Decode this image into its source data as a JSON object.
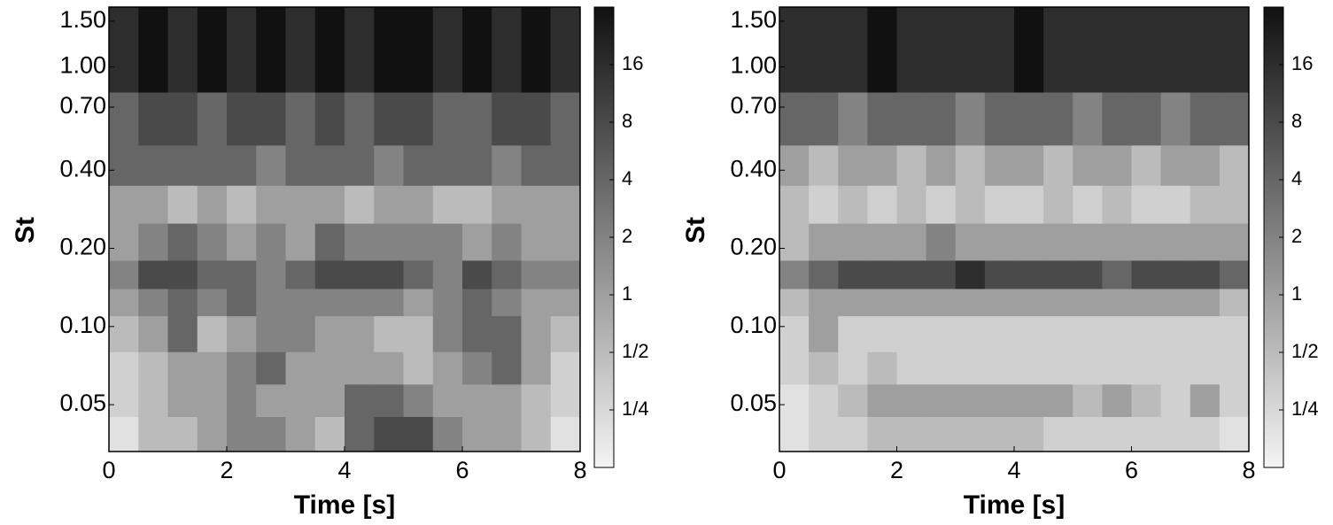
{
  "chart_data": [
    {
      "type": "heatmap",
      "xlabel": "Time [s]",
      "ylabel": "St",
      "log_y": true,
      "xlim": [
        0,
        8
      ],
      "xticks": [
        0,
        2,
        4,
        6,
        8
      ],
      "ylim": [
        0.033,
        1.7
      ],
      "yticks": [
        0.05,
        {
          "value": 0.1,
          "label": "0.10"
        },
        {
          "value": 0.2,
          "label": "0.20"
        },
        {
          "value": 0.4,
          "label": "0.40"
        },
        {
          "value": 0.7,
          "label": "0.70"
        },
        {
          "value": 1,
          "label": "1.00"
        },
        {
          "value": 1.5,
          "label": "1.50"
        }
      ],
      "x_edges": [
        0,
        0.5,
        1,
        1.5,
        2,
        2.5,
        3,
        3.5,
        4,
        4.5,
        5,
        5.5,
        6,
        6.5,
        7,
        7.5,
        8
      ],
      "y_edges": [
        0.033,
        0.045,
        0.06,
        0.08,
        0.11,
        0.14,
        0.18,
        0.25,
        0.35,
        0.5,
        0.8,
        1.7
      ],
      "z": [
        [
          0.2,
          0.5,
          0.5,
          1,
          2,
          2,
          1,
          0.5,
          4,
          8,
          8,
          2,
          1,
          1,
          0.5,
          0.2
        ],
        [
          0.3,
          0.5,
          1,
          1,
          2,
          1,
          1,
          1,
          4,
          4,
          2,
          1,
          1,
          1,
          0.5,
          0.3
        ],
        [
          0.3,
          0.5,
          1,
          1,
          2,
          4,
          1,
          1,
          1,
          1,
          0.5,
          1,
          2,
          4,
          1,
          0.3
        ],
        [
          0.5,
          1,
          4,
          0.5,
          1,
          2,
          2,
          1,
          1,
          0.5,
          0.5,
          2,
          4,
          4,
          1,
          0.5
        ],
        [
          1,
          2,
          4,
          2,
          4,
          2,
          2,
          2,
          2,
          2,
          1,
          2,
          4,
          2,
          1,
          1
        ],
        [
          2,
          8,
          8,
          4,
          4,
          2,
          4,
          8,
          8,
          8,
          4,
          2,
          8,
          4,
          2,
          2
        ],
        [
          1,
          2,
          4,
          2,
          1,
          2,
          1,
          4,
          2,
          2,
          2,
          2,
          1,
          2,
          1,
          1
        ],
        [
          1,
          1,
          0.5,
          1,
          0.5,
          1,
          1,
          1,
          0.5,
          1,
          1,
          0.5,
          0.5,
          1,
          1,
          1
        ],
        [
          4,
          4,
          4,
          4,
          4,
          2,
          4,
          4,
          4,
          2,
          4,
          4,
          4,
          2,
          4,
          4
        ],
        [
          4,
          8,
          8,
          4,
          8,
          8,
          4,
          8,
          4,
          8,
          8,
          4,
          4,
          8,
          8,
          4
        ],
        [
          16,
          32,
          16,
          32,
          16,
          32,
          16,
          32,
          16,
          32,
          32,
          16,
          32,
          16,
          32,
          16
        ]
      ],
      "colorbar": {
        "lim": [
          0.125,
          32
        ],
        "log": true,
        "colors": [
          "#f4f4f4",
          "#111111"
        ],
        "ticks": [
          {
            "value": 0.25,
            "label": "1/4"
          },
          {
            "value": 0.5,
            "label": "1/2"
          },
          1,
          2,
          4,
          8,
          16
        ]
      }
    },
    {
      "type": "heatmap",
      "xlabel": "Time [s]",
      "ylabel": "St",
      "log_y": true,
      "xlim": [
        0,
        8
      ],
      "xticks": [
        0,
        2,
        4,
        6,
        8
      ],
      "ylim": [
        0.033,
        1.7
      ],
      "yticks": [
        0.05,
        {
          "value": 0.1,
          "label": "0.10"
        },
        {
          "value": 0.2,
          "label": "0.20"
        },
        {
          "value": 0.4,
          "label": "0.40"
        },
        {
          "value": 0.7,
          "label": "0.70"
        },
        {
          "value": 1,
          "label": "1.00"
        },
        {
          "value": 1.5,
          "label": "1.50"
        }
      ],
      "x_edges": [
        0,
        0.5,
        1,
        1.5,
        2,
        2.5,
        3,
        3.5,
        4,
        4.5,
        5,
        5.5,
        6,
        6.5,
        7,
        7.5,
        8
      ],
      "y_edges": [
        0.033,
        0.045,
        0.06,
        0.08,
        0.11,
        0.14,
        0.18,
        0.25,
        0.35,
        0.5,
        0.8,
        1.7
      ],
      "z": [
        [
          0.2,
          0.3,
          0.3,
          0.5,
          0.5,
          0.5,
          0.5,
          0.5,
          0.5,
          0.3,
          0.3,
          0.3,
          0.3,
          0.3,
          0.3,
          0.2
        ],
        [
          0.2,
          0.3,
          0.5,
          1,
          1,
          1,
          1,
          1,
          1,
          1,
          0.5,
          1,
          0.5,
          0.3,
          1,
          0.3
        ],
        [
          0.3,
          0.5,
          0.3,
          0.5,
          0.3,
          0.3,
          0.3,
          0.3,
          0.3,
          0.3,
          0.3,
          0.3,
          0.3,
          0.3,
          0.3,
          0.3
        ],
        [
          0.3,
          1,
          0.3,
          0.3,
          0.3,
          0.3,
          0.3,
          0.3,
          0.3,
          0.3,
          0.3,
          0.3,
          0.3,
          0.3,
          0.3,
          0.3
        ],
        [
          0.5,
          1,
          1,
          1,
          1,
          1,
          1,
          1,
          1,
          1,
          1,
          1,
          1,
          1,
          1,
          0.5
        ],
        [
          2,
          4,
          8,
          8,
          8,
          8,
          16,
          8,
          8,
          8,
          8,
          4,
          8,
          8,
          8,
          4
        ],
        [
          0.5,
          1,
          1,
          1,
          1,
          2,
          1,
          1,
          1,
          1,
          1,
          1,
          1,
          1,
          1,
          1
        ],
        [
          0.5,
          0.3,
          0.5,
          0.3,
          0.5,
          0.3,
          0.5,
          0.3,
          0.3,
          0.5,
          0.3,
          0.5,
          0.3,
          0.3,
          0.5,
          0.5
        ],
        [
          1,
          0.5,
          1,
          1,
          0.5,
          1,
          0.5,
          1,
          1,
          0.5,
          1,
          1,
          0.5,
          1,
          1,
          0.5
        ],
        [
          4,
          4,
          2,
          4,
          4,
          4,
          2,
          4,
          4,
          4,
          2,
          4,
          4,
          2,
          4,
          4
        ],
        [
          16,
          16,
          16,
          32,
          16,
          16,
          16,
          16,
          32,
          16,
          16,
          16,
          16,
          16,
          16,
          16
        ]
      ],
      "colorbar": {
        "lim": [
          0.125,
          32
        ],
        "log": true,
        "colors": [
          "#f4f4f4",
          "#111111"
        ],
        "ticks": [
          {
            "value": 0.25,
            "label": "1/4"
          },
          {
            "value": 0.5,
            "label": "1/2"
          },
          1,
          2,
          4,
          8,
          16
        ]
      }
    }
  ]
}
